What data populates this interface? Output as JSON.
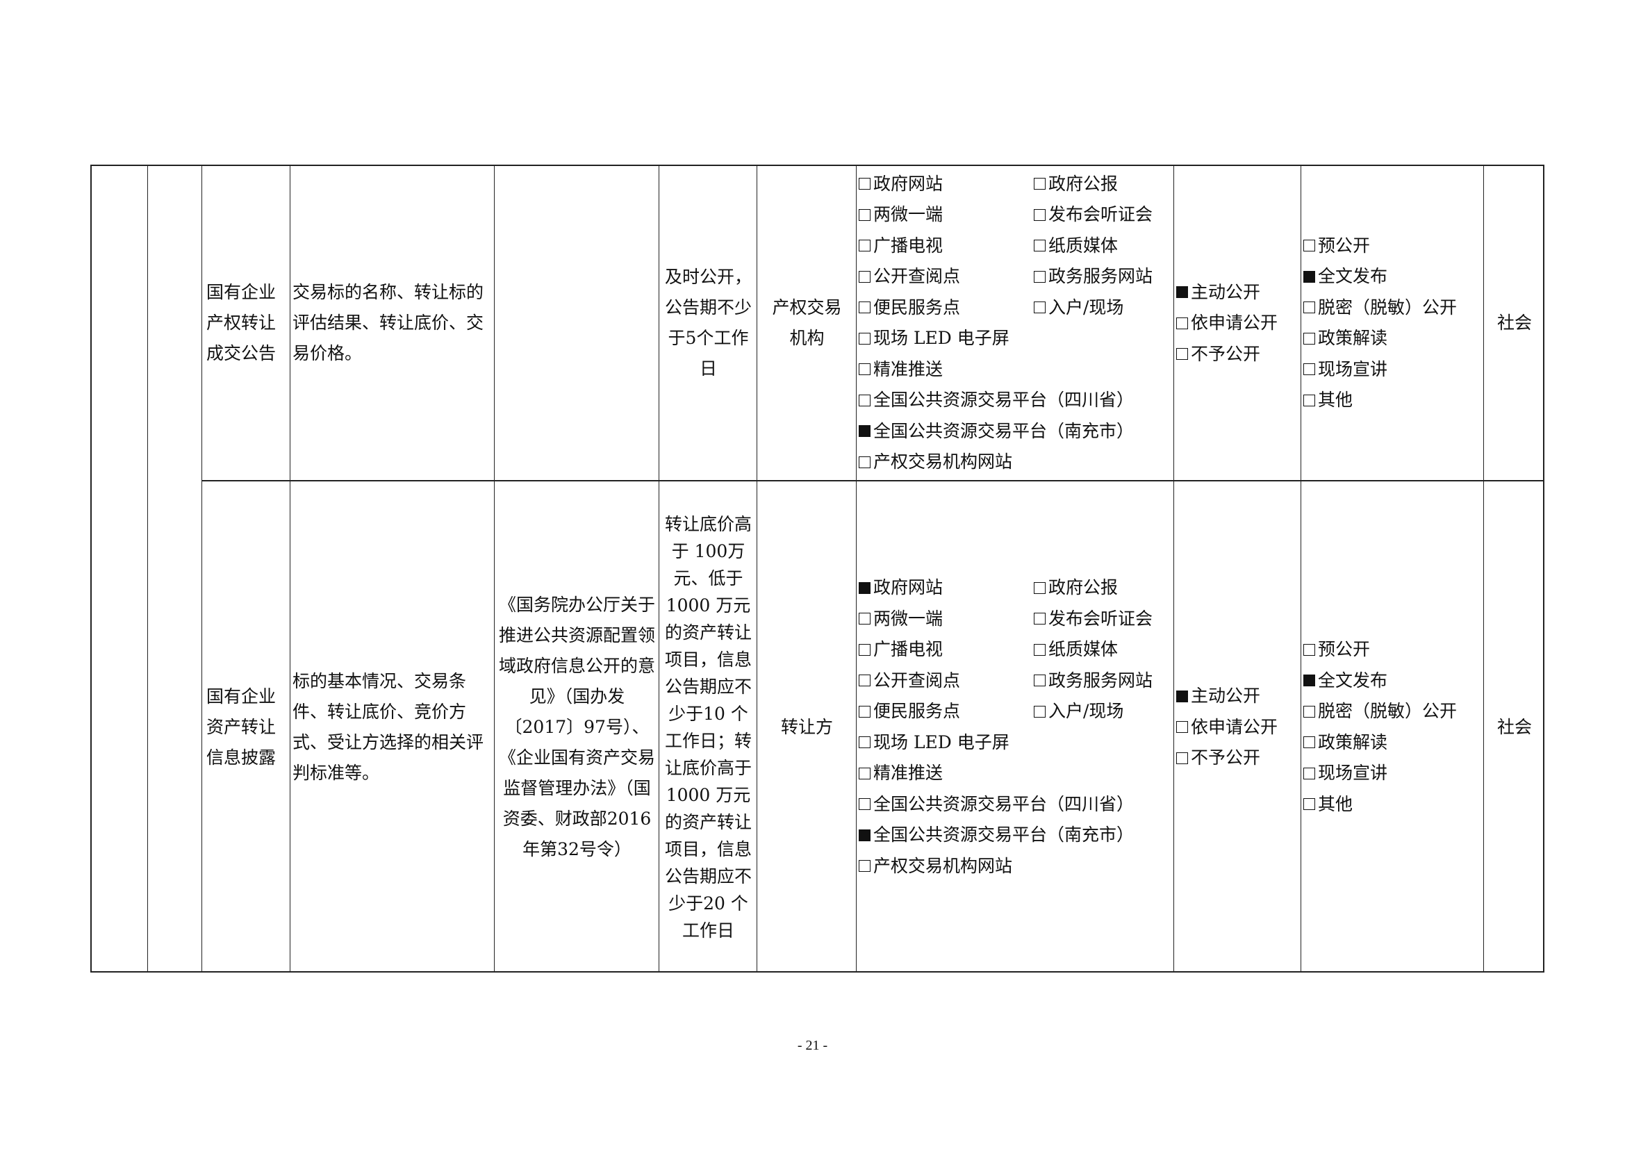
{
  "rows": [
    {
      "item": "国有企业产权转让成交公告",
      "content": "交易标的名称、转让标的评估结果、转让底价、交易价格。",
      "basis": "",
      "deadline": "及时公开，公告期不少于5个工作日",
      "subject": "产权交易机构",
      "platforms": [
        {
          "label": "政府网站",
          "checked": false
        },
        {
          "label": "政府公报",
          "checked": false
        },
        {
          "label": "两微一端",
          "checked": false
        },
        {
          "label": "发布会听证会",
          "checked": false
        },
        {
          "label": "广播电视",
          "checked": false
        },
        {
          "label": "纸质媒体",
          "checked": false
        },
        {
          "label": "公开查阅点",
          "checked": false
        },
        {
          "label": "政务服务网站",
          "checked": false
        },
        {
          "label": "便民服务点",
          "checked": false
        },
        {
          "label": "入户/现场",
          "checked": false
        }
      ],
      "platforms_wide": [
        {
          "label": "现场 LED 电子屏",
          "checked": false
        },
        {
          "label": "精准推送",
          "checked": false
        },
        {
          "label": "全国公共资源交易平台（四川省）",
          "checked": false
        },
        {
          "label": "全国公共资源交易平台（南充市）",
          "checked": true
        },
        {
          "label": "产权交易机构网站",
          "checked": false
        }
      ],
      "mode": [
        {
          "label": "主动公开",
          "checked": true
        },
        {
          "label": "依申请公开",
          "checked": false
        },
        {
          "label": "不予公开",
          "checked": false
        }
      ],
      "form": [
        {
          "label": "预公开",
          "checked": false
        },
        {
          "label": "全文发布",
          "checked": true
        },
        {
          "label": "脱密（脱敏）公开",
          "checked": false
        },
        {
          "label": "政策解读",
          "checked": false
        },
        {
          "label": "现场宣讲",
          "checked": false
        },
        {
          "label": "其他",
          "checked": false
        }
      ],
      "audience": "社会"
    },
    {
      "item": "国有企业资产转让信息披露",
      "content": "标的基本情况、交易条件、转让底价、竞价方式、受让方选择的相关评判标准等。",
      "basis": "《国务院办公厅关于推进公共资源配置领域政府信息公开的意见》（国办发〔2017〕97号）、《企业国有资产交易监督管理办法》（国资委、财政部2016年第32号令）",
      "deadline": "转让底价高于 100万元、低于1000 万元的资产转让项目，信息公告期应不少于10 个工作日；转让底价高于1000 万元的资产转让项目，信息公告期应不少于20 个工作日",
      "subject": "转让方",
      "platforms": [
        {
          "label": "政府网站",
          "checked": true
        },
        {
          "label": "政府公报",
          "checked": false
        },
        {
          "label": "两微一端",
          "checked": false
        },
        {
          "label": "发布会听证会",
          "checked": false
        },
        {
          "label": "广播电视",
          "checked": false
        },
        {
          "label": "纸质媒体",
          "checked": false
        },
        {
          "label": "公开查阅点",
          "checked": false
        },
        {
          "label": "政务服务网站",
          "checked": false
        },
        {
          "label": "便民服务点",
          "checked": false
        },
        {
          "label": "入户/现场",
          "checked": false
        }
      ],
      "platforms_wide": [
        {
          "label": "现场 LED 电子屏",
          "checked": false
        },
        {
          "label": "精准推送",
          "checked": false
        },
        {
          "label": "全国公共资源交易平台（四川省）",
          "checked": false
        },
        {
          "label": "全国公共资源交易平台（南充市）",
          "checked": true
        },
        {
          "label": "产权交易机构网站",
          "checked": false
        }
      ],
      "mode": [
        {
          "label": "主动公开",
          "checked": true
        },
        {
          "label": "依申请公开",
          "checked": false
        },
        {
          "label": "不予公开",
          "checked": false
        }
      ],
      "form": [
        {
          "label": "预公开",
          "checked": false
        },
        {
          "label": "全文发布",
          "checked": true
        },
        {
          "label": "脱密（脱敏）公开",
          "checked": false
        },
        {
          "label": "政策解读",
          "checked": false
        },
        {
          "label": "现场宣讲",
          "checked": false
        },
        {
          "label": "其他",
          "checked": false
        }
      ],
      "audience": "社会"
    }
  ],
  "page_number": "- 21 -"
}
